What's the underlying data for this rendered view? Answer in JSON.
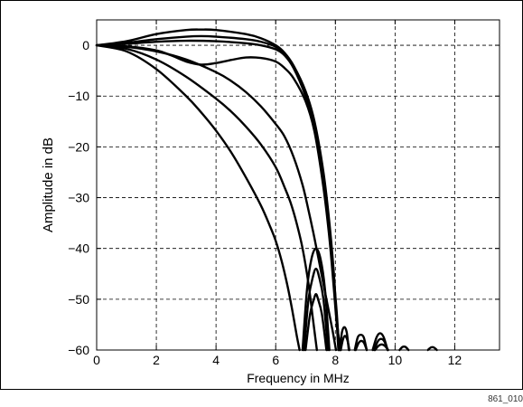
{
  "figure_id": "861_010",
  "chart_data": {
    "type": "line",
    "title": "",
    "xlabel": "Frequency in MHz",
    "ylabel": "Amplitude in dB",
    "xlim": [
      0,
      13.5
    ],
    "ylim": [
      -60,
      5
    ],
    "xticks": [
      0,
      2,
      4,
      6,
      8,
      10,
      12
    ],
    "yticks": [
      0,
      -10,
      -20,
      -30,
      -40,
      -50,
      -60
    ],
    "grid": true,
    "grid_style": "dashed",
    "line_color": "#000000",
    "legend": "none",
    "series": [
      {
        "x": [
          0,
          1,
          2,
          3,
          3.5,
          4,
          5,
          5.5,
          6,
          6.3,
          6.6,
          7,
          7.3,
          7.6,
          7.8,
          7.95,
          8.02,
          8.1
        ],
        "y": [
          0,
          0.8,
          2.2,
          3,
          3.1,
          3,
          2.2,
          1.4,
          0,
          -1.5,
          -4,
          -9,
          -15,
          -25,
          -35,
          -45,
          -52,
          -60
        ]
      },
      {
        "x": [
          0,
          1,
          2,
          3,
          3.5,
          4,
          5,
          5.5,
          6,
          6.3,
          6.6,
          7,
          7.3,
          7.6,
          7.8,
          7.95,
          8.05,
          8.12
        ],
        "y": [
          0,
          0.5,
          1.2,
          1.7,
          1.8,
          1.7,
          1.2,
          0.7,
          -0.3,
          -1.8,
          -4.2,
          -9.5,
          -15.5,
          -26,
          -36,
          -46,
          -53,
          -60
        ]
      },
      {
        "x": [
          0,
          1,
          2,
          3,
          4,
          5,
          5.5,
          6,
          6.3,
          6.6,
          7,
          7.3,
          7.6,
          7.8,
          7.95,
          8.05,
          8.15
        ],
        "y": [
          0,
          0.3,
          0.7,
          0.9,
          0.8,
          0.4,
          0,
          -0.8,
          -2,
          -4.5,
          -10,
          -16,
          -27,
          -37,
          -47,
          -54,
          -60
        ]
      },
      {
        "x": [
          0,
          1,
          2,
          2.5,
          3,
          3.5,
          4,
          4.5,
          5,
          5.5,
          6,
          6.3,
          6.6,
          7,
          7.3,
          7.6,
          7.8,
          7.95,
          8.05,
          8.18
        ],
        "y": [
          0,
          -0.2,
          -1,
          -2,
          -3.2,
          -3.8,
          -3.5,
          -2.9,
          -2.4,
          -2.5,
          -3.2,
          -4.5,
          -6.5,
          -11,
          -17,
          -28,
          -38,
          -48,
          -55,
          -60
        ]
      },
      {
        "x": [
          0,
          1,
          2,
          3,
          4,
          4.5,
          5,
          5.5,
          6,
          6.3,
          6.6,
          6.9,
          7.1,
          7.3,
          7.5,
          7.7,
          7.9,
          8.02
        ],
        "y": [
          0,
          -0.3,
          -1.2,
          -2.8,
          -5.3,
          -7,
          -9.2,
          -12,
          -15.5,
          -18,
          -22,
          -27.5,
          -32.5,
          -38,
          -44,
          -50,
          -56,
          -60
        ]
      },
      {
        "x": [
          0,
          1,
          2,
          3,
          4,
          4.5,
          5,
          5.5,
          6,
          6.3,
          6.5,
          6.7,
          6.9,
          7.1,
          7.25,
          7.38
        ],
        "y": [
          0,
          -0.7,
          -2.8,
          -6.2,
          -10.5,
          -13,
          -16,
          -19.5,
          -24,
          -28,
          -31,
          -35,
          -40,
          -47,
          -54,
          -60
        ]
      },
      {
        "x": [
          0,
          1,
          2,
          3,
          3.5,
          4,
          4.5,
          5,
          5.5,
          5.8,
          6,
          6.2,
          6.4,
          6.55,
          6.7,
          6.8
        ],
        "y": [
          0,
          -1.2,
          -4.7,
          -10,
          -13.2,
          -16.8,
          -21,
          -26,
          -31.5,
          -35.5,
          -38.5,
          -42.5,
          -47.5,
          -52,
          -57,
          -60
        ]
      },
      {
        "x": [
          6.9,
          7.05,
          7.2,
          7.35,
          7.5,
          7.65,
          7.8
        ],
        "y": [
          -60,
          -48,
          -42,
          -40,
          -42,
          -48,
          -60
        ]
      },
      {
        "x": [
          6.95,
          7.1,
          7.25,
          7.35,
          7.45,
          7.6,
          7.75
        ],
        "y": [
          -60,
          -50,
          -45.5,
          -44,
          -45.5,
          -50,
          -60
        ]
      },
      {
        "x": [
          7.0,
          7.15,
          7.28,
          7.35,
          7.42,
          7.55,
          7.7
        ],
        "y": [
          -60,
          -53,
          -50,
          -49,
          -50,
          -53,
          -60
        ]
      },
      {
        "x": [
          8.15,
          8.22,
          8.3,
          8.38,
          8.45
        ],
        "y": [
          -60,
          -56.5,
          -55.5,
          -56.5,
          -60
        ]
      },
      {
        "x": [
          8.18,
          8.25,
          8.32,
          8.4,
          8.47
        ],
        "y": [
          -60,
          -58,
          -57.2,
          -58,
          -60
        ]
      },
      {
        "x": [
          8.65,
          8.75,
          8.85,
          8.95,
          9.05
        ],
        "y": [
          -60,
          -57.5,
          -57,
          -57.5,
          -60
        ]
      },
      {
        "x": [
          8.68,
          8.78,
          8.87,
          8.96,
          9.05
        ],
        "y": [
          -60,
          -58.6,
          -58.2,
          -58.6,
          -60
        ]
      },
      {
        "x": [
          9.25,
          9.38,
          9.5,
          9.62,
          9.75
        ],
        "y": [
          -60,
          -57.5,
          -56.7,
          -57.5,
          -60
        ]
      },
      {
        "x": [
          9.3,
          9.42,
          9.53,
          9.64,
          9.75
        ],
        "y": [
          -60,
          -58.3,
          -57.8,
          -58.3,
          -60
        ]
      },
      {
        "x": [
          9.33,
          9.44,
          9.55,
          9.66,
          9.77
        ],
        "y": [
          -60,
          -59.2,
          -58.9,
          -59.2,
          -60
        ]
      },
      {
        "x": [
          10.15,
          10.25,
          10.35,
          10.45
        ],
        "y": [
          -60,
          -59.4,
          -59.4,
          -60
        ]
      },
      {
        "x": [
          11.1,
          11.2,
          11.3,
          11.4
        ],
        "y": [
          -60,
          -59.5,
          -59.5,
          -60
        ]
      }
    ]
  }
}
